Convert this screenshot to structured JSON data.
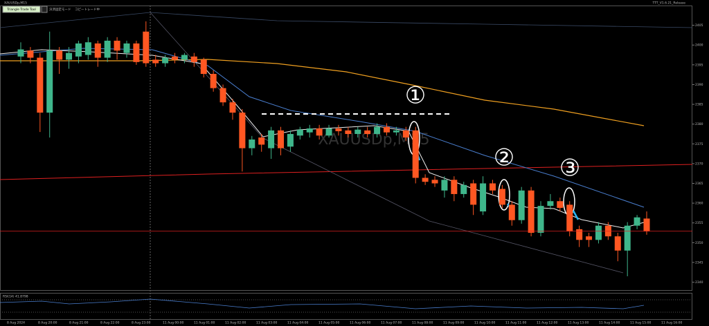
{
  "chart_data": {
    "type": "candlestick",
    "title": "XAUUSDp,M15",
    "watermark": "XAUUSDp,M15",
    "toolbar": [
      "Triangle Trade Tool",
      "決済固定モード",
      "コピートレード中"
    ],
    "version_label": "TTT_V1.6.21_Release",
    "indicator_label": "RSI(14) 41.8798",
    "annotations": [
      "①",
      "②",
      "③"
    ],
    "up_color": "#3fb68b",
    "down_color": "#ff5722",
    "ylim": [
      2338,
      2410
    ],
    "yticks": [
      2340,
      2345,
      2350,
      2355,
      2360,
      2365,
      2370,
      2375,
      2380,
      2385,
      2390,
      2395,
      2400,
      2405
    ],
    "x_labels": [
      "8 Aug 2024",
      "8 Aug 20:00",
      "8 Aug 21:00",
      "8 Aug 22:00",
      "8 Aug 23:00",
      "11 Aug 00:00",
      "11 Aug 01:00",
      "11 Aug 02:00",
      "11 Aug 03:00",
      "11 Aug 04:00",
      "11 Aug 05:00",
      "11 Aug 06:00",
      "11 Aug 07:00",
      "11 Aug 08:00",
      "11 Aug 09:00",
      "11 Aug 10:00",
      "11 Aug 11:00",
      "11 Aug 12:00",
      "11 Aug 13:00",
      "11 Aug 14:00",
      "11 Aug 15:00",
      "11 Aug 16:00"
    ],
    "open": [
      2397.1,
      2398.6,
      2396.8,
      2382.9,
      2398.6,
      2396.3,
      2397.1,
      2397.5,
      2400.4,
      2396.8,
      2401.1,
      2398.0,
      2400.4,
      2403.4,
      2396.3,
      2395.4,
      2397.1,
      2396.3,
      2397.1,
      2396.3,
      2392.7,
      2389.1,
      2385.5,
      2382.9,
      2373.9,
      2376.6,
      2373.9,
      2378.4,
      2374.3,
      2377.1,
      2377.9,
      2378.9,
      2377.1,
      2378.9,
      2378.4,
      2377.5,
      2378.4,
      2377.5,
      2379.3,
      2377.9,
      2378.4,
      2378.4,
      2366.4,
      2365.9,
      2363.2,
      2365.9,
      2362.3,
      2365.0,
      2357.9,
      2365.0,
      2363.6,
      2359.6,
      2355.7,
      2363.2,
      2352.5,
      2359.3,
      2360.5,
      2359.6,
      2353.4,
      2351.6,
      2350.7,
      2354.3,
      2351.6,
      2348.0,
      2354.3,
      2356.1
    ],
    "close": [
      2398.9,
      2396.8,
      2382.9,
      2398.6,
      2396.3,
      2398.0,
      2400.4,
      2400.7,
      2396.8,
      2401.1,
      2398.6,
      2400.4,
      2395.7,
      2395.4,
      2395.4,
      2396.8,
      2396.3,
      2397.5,
      2395.7,
      2392.7,
      2389.1,
      2385.5,
      2382.9,
      2373.9,
      2376.1,
      2374.8,
      2378.4,
      2373.9,
      2377.5,
      2378.6,
      2378.9,
      2377.1,
      2378.9,
      2378.2,
      2377.5,
      2378.6,
      2377.5,
      2379.3,
      2377.9,
      2378.4,
      2376.6,
      2366.4,
      2365.4,
      2365.0,
      2365.9,
      2362.3,
      2364.6,
      2359.6,
      2365.0,
      2363.2,
      2359.6,
      2355.7,
      2363.2,
      2352.5,
      2359.3,
      2360.5,
      2358.8,
      2352.9,
      2350.7,
      2350.7,
      2354.3,
      2351.6,
      2348.0,
      2354.3,
      2356.4,
      2352.9
    ],
    "high": [
      2400.7,
      2399.5,
      2398.0,
      2403.4,
      2399.5,
      2399.5,
      2401.1,
      2402.0,
      2401.1,
      2402.0,
      2402.0,
      2401.1,
      2401.1,
      2406.0,
      2397.5,
      2397.5,
      2398.0,
      2398.0,
      2398.0,
      2396.8,
      2393.6,
      2390.0,
      2386.4,
      2383.8,
      2377.0,
      2377.5,
      2379.3,
      2379.3,
      2378.4,
      2379.3,
      2379.8,
      2379.8,
      2379.8,
      2379.8,
      2379.3,
      2379.3,
      2379.3,
      2380.2,
      2380.2,
      2379.3,
      2379.3,
      2379.3,
      2367.3,
      2366.8,
      2366.8,
      2366.8,
      2365.4,
      2365.9,
      2366.8,
      2365.9,
      2364.6,
      2360.5,
      2364.1,
      2364.1,
      2360.5,
      2362.3,
      2361.4,
      2360.5,
      2354.3,
      2352.5,
      2355.2,
      2355.2,
      2352.5,
      2355.2,
      2357.0,
      2357.9
    ],
    "low": [
      2395.4,
      2395.4,
      2378.0,
      2376.6,
      2392.7,
      2394.0,
      2395.4,
      2396.3,
      2394.5,
      2395.7,
      2396.3,
      2396.8,
      2395.0,
      2394.5,
      2394.5,
      2394.5,
      2395.4,
      2395.4,
      2394.5,
      2391.8,
      2388.2,
      2384.6,
      2381.1,
      2368.0,
      2372.1,
      2373.0,
      2371.2,
      2372.1,
      2373.0,
      2376.1,
      2376.6,
      2376.1,
      2376.6,
      2377.1,
      2376.6,
      2376.6,
      2376.6,
      2376.6,
      2377.1,
      2377.1,
      2375.7,
      2365.0,
      2364.6,
      2364.1,
      2361.4,
      2360.5,
      2361.4,
      2357.0,
      2357.0,
      2362.3,
      2358.8,
      2354.3,
      2354.8,
      2351.6,
      2351.6,
      2358.4,
      2357.9,
      2351.6,
      2348.9,
      2348.9,
      2349.8,
      2350.7,
      2345.3,
      2341.5,
      2353.4,
      2352.0
    ]
  }
}
